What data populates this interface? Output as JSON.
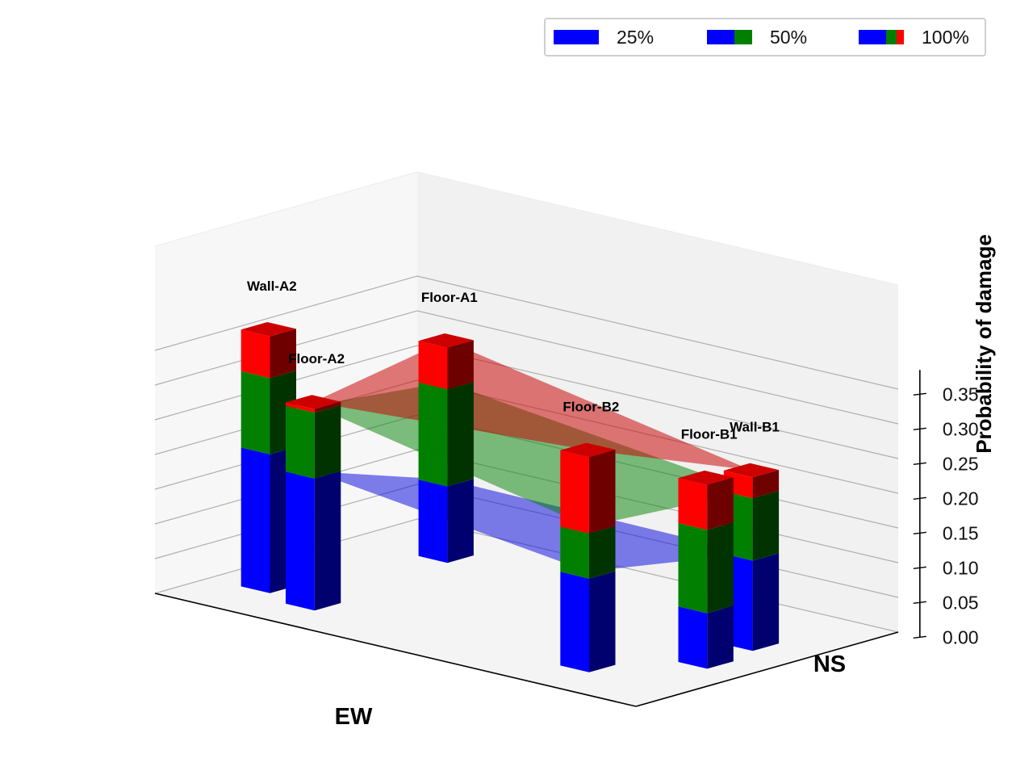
{
  "chart_data": {
    "type": "bar3d",
    "zlabel": "Probability of damage",
    "xlabel": "EW",
    "ylabel": "NS",
    "zlim": [
      0,
      0.38
    ],
    "zticks": [
      "0.00",
      "0.05",
      "0.10",
      "0.15",
      "0.20",
      "0.25",
      "0.30",
      "0.35"
    ],
    "grid": true,
    "legend_placement": "top-right",
    "series": [
      {
        "name": "25%",
        "colors": [
          "#0000ff"
        ]
      },
      {
        "name": "50%",
        "colors": [
          "#0000ff",
          "#007f00"
        ]
      },
      {
        "name": "100%",
        "colors": [
          "#0000ff",
          "#007f00",
          "#ff0000"
        ]
      }
    ],
    "bars": [
      {
        "label": "Wall-A2",
        "p25": 0.2,
        "p50": 0.31,
        "p100": 0.37
      },
      {
        "label": "Floor-A2",
        "p25": 0.19,
        "p50": 0.285,
        "p100": 0.29
      },
      {
        "label": "Floor-A1",
        "p25": 0.11,
        "p50": 0.25,
        "p100": 0.31
      },
      {
        "label": "Floor-B2",
        "p25": 0.135,
        "p50": 0.2,
        "p100": 0.31
      },
      {
        "label": "Floor-B1",
        "p25": 0.08,
        "p50": 0.2,
        "p100": 0.265
      },
      {
        "label": "Wall-B1",
        "p25": 0.13,
        "p50": 0.22,
        "p100": 0.25
      }
    ],
    "colors": {
      "p25": "#0000ff",
      "p50": "#007f00",
      "p100": "#ff0000"
    }
  }
}
